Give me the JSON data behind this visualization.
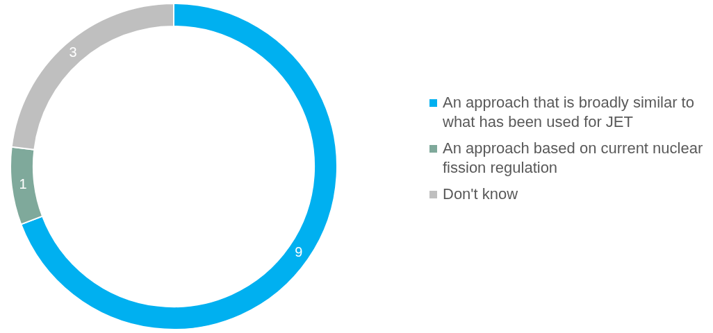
{
  "chart_data": {
    "type": "donut",
    "categories": [
      "An approach that is broadly similar to what has been used for JET",
      "An approach based on current nuclear fission regulation",
      "Don't know"
    ],
    "values": [
      9,
      1,
      3
    ],
    "colors": [
      "#00b0f0",
      "#7fa99b",
      "#bfbfbf"
    ],
    "data_labels": true,
    "legend": "right"
  }
}
